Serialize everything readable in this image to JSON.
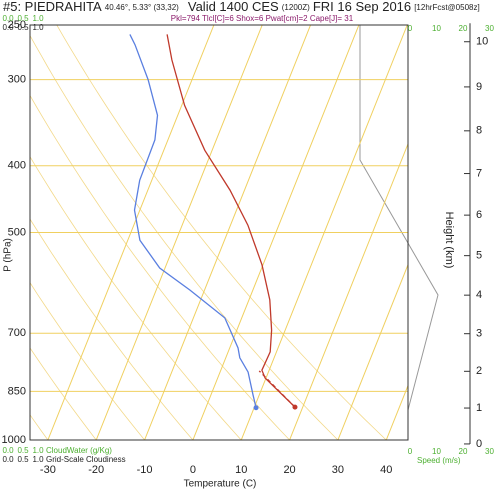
{
  "chart_data": {
    "type": "skewt",
    "title": "#5: PIEDRAHITA",
    "location": "40.46°, 5.33° (33,32)",
    "valid": "Valid 1400 CES",
    "utc": "(1200Z)",
    "date": "FRI 16 Sep 2016",
    "forecast": "[12hrFcst@0508z]",
    "subtitle": "Pkl=794 Tlcl[C]=6 Shox=6 Pwat[cm]=2 Cape[J]= 31",
    "xlabel": "Temperature (C)",
    "ylabel": "P (hPa)",
    "y2label": "Height (km)",
    "speed_label": "Speed (m/s)",
    "cloud_water_label": "CloudWater (g/Kg)",
    "cloudiness_label": "Grid-Scale Cloudiness",
    "cloud_ticks": [
      {
        "value": 0,
        "label": "0.0"
      },
      {
        "value": 0.5,
        "label": "0.5"
      },
      {
        "value": 1,
        "label": "1.0"
      }
    ],
    "speed_ticks": [
      0,
      10,
      20,
      30
    ],
    "xlim": [
      -33.7,
      44.5
    ],
    "xticks": [
      -30,
      -20,
      -10,
      0,
      10,
      20,
      30,
      40
    ],
    "ylim": [
      1000,
      250
    ],
    "yticks": [
      250,
      300,
      400,
      500,
      700,
      850,
      1000
    ],
    "log_y": true,
    "y2lim": [
      0,
      10.4
    ],
    "y2ticks": [
      0,
      1,
      2,
      3,
      4,
      5,
      6,
      7,
      8,
      9,
      10
    ],
    "grid": true,
    "series": [
      {
        "color": "#c0392b",
        "style": "solid",
        "marker": true,
        "pressure": [
          896,
          813,
          792,
          745,
          693,
          626,
          557,
          488,
          434,
          380,
          327,
          281,
          258
        ],
        "values": [
          18.4,
          9.8,
          8.5,
          8.7,
          7.2,
          4.3,
          -0.2,
          -6.4,
          -13.0,
          -21.5,
          -29.4,
          -35.8,
          -38.9
        ]
      },
      {
        "color": "#5a7fe0",
        "style": "solid",
        "marker": true,
        "pressure": [
          898,
          860,
          797,
          760,
          735,
          665,
          606,
          563,
          513,
          464,
          420,
          367,
          338,
          300,
          267,
          258
        ],
        "values": [
          10.4,
          8.7,
          5.8,
          2.9,
          1.7,
          -3.5,
          -13.0,
          -21.1,
          -27.5,
          -31.1,
          -32.5,
          -32.7,
          -34.2,
          -39.1,
          -44.7,
          -46.6
        ]
      },
      {
        "color": "#c0392b",
        "style": "dashed",
        "marker": false,
        "pressure": [
          896,
          794
        ],
        "values": [
          18.4,
          8.0
        ]
      }
    ]
  }
}
